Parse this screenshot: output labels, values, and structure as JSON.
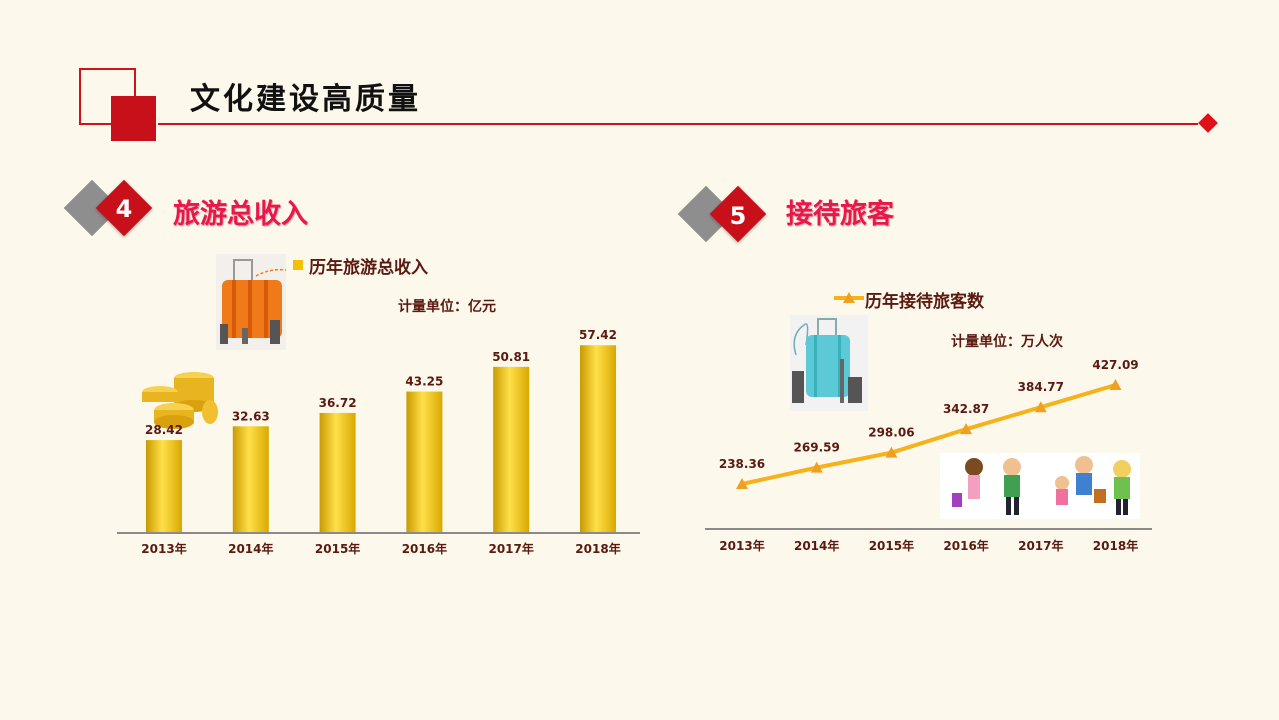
{
  "page": {
    "title": "文化建设高质量"
  },
  "section_left": {
    "number": "4",
    "title": "旅游总收入",
    "legend": "历年旅游总收入",
    "unit": "计量单位：亿元"
  },
  "section_right": {
    "number": "5",
    "title": "接待旅客",
    "legend": "历年接待旅客数",
    "unit": "计量单位：万人次"
  },
  "icons": {
    "suitcase_left": "suitcase-orange-icon",
    "coins": "gold-coins-icon",
    "suitcase_right": "suitcase-blue-icon",
    "family": "family-travelers-icon"
  },
  "colors": {
    "accent_red": "#c8101a",
    "title_pink": "#e8184a",
    "bar_gold": "#f5c000",
    "line_orange": "#f5b21a"
  },
  "chart_data": [
    {
      "type": "bar",
      "series": [
        {
          "name": "历年旅游总收入",
          "values": [
            28.42,
            32.63,
            36.72,
            43.25,
            50.81,
            57.42
          ]
        }
      ],
      "categories": [
        "2013年",
        "2014年",
        "2015年",
        "2016年",
        "2017年",
        "2018年"
      ],
      "ylim": [
        0,
        60
      ]
    },
    {
      "type": "line",
      "series": [
        {
          "name": "历年接待旅客数",
          "values": [
            238.36,
            269.59,
            298.06,
            342.87,
            384.77,
            427.09
          ]
        }
      ],
      "categories": [
        "2013年",
        "2014年",
        "2015年",
        "2016年",
        "2017年",
        "2018年"
      ],
      "ylim": [
        0,
        450
      ]
    }
  ]
}
